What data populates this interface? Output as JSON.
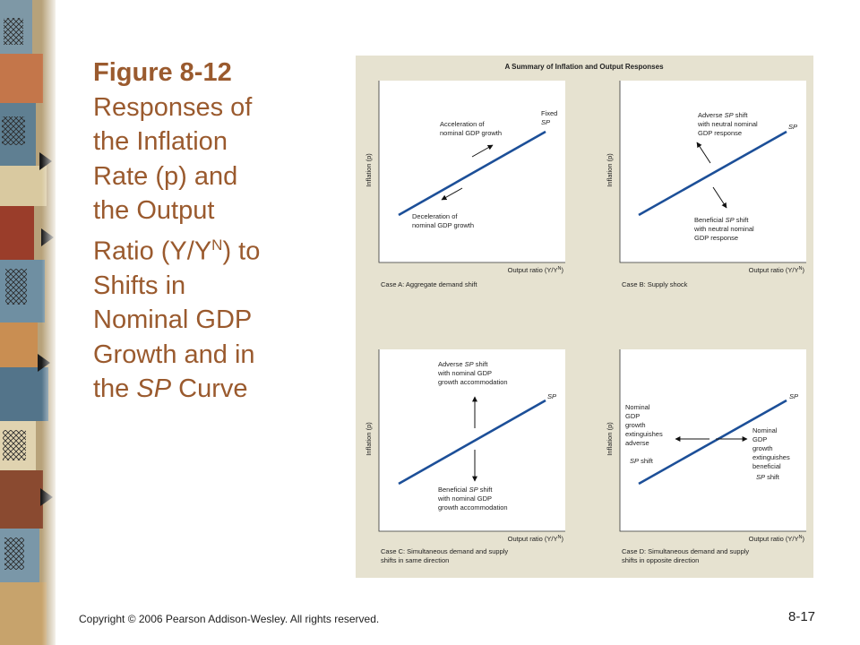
{
  "title": {
    "figure_label": "Figure 8-12",
    "lines": [
      "Responses of",
      "the Inflation",
      "Rate (p) and",
      "the Output",
      "Ratio (Y/Y",
      "Shifts in",
      "Nominal GDP",
      "Growth and in",
      "the "
    ],
    "ratio_sup": "N",
    "ratio_tail": ") to",
    "sp_italic": "SP",
    "curve_word": " Curve"
  },
  "footer": {
    "copyright": "Copyright © 2006 Pearson Addison-Wesley. All rights reserved.",
    "page_number": "8-17"
  },
  "figure": {
    "header": "A Summary of Inflation and Output Responses",
    "y_axis_label": "Inflation (p)",
    "x_axis_label": "Output ratio (Y/Y",
    "x_axis_sup": "N",
    "x_axis_close": ")",
    "sp_label": "SP",
    "colors": {
      "background": "#e6e2d0",
      "curve": "#1c4f98",
      "title_text": "#9a5a2e"
    },
    "panels": {
      "a": {
        "caption": "Case A: Aggregate demand shift",
        "fixed_label": "Fixed",
        "accel": [
          "Acceleration of",
          "nominal GDP growth"
        ],
        "decel": [
          "Deceleration of",
          "nominal GDP growth"
        ]
      },
      "b": {
        "caption": "Case B: Supply shock",
        "adverse": [
          "Adverse ",
          "SP",
          " shift",
          "with neutral nominal",
          "GDP response"
        ],
        "beneficial": [
          "Beneficial ",
          "SP",
          " shift",
          "with neutral nominal",
          "GDP response"
        ]
      },
      "c": {
        "caption": [
          "Case C: Simultaneous demand and supply",
          "shifts in same direction"
        ],
        "adverse": [
          "Adverse ",
          "SP",
          " shift",
          "with nominal GDP",
          "growth accommodation"
        ],
        "beneficial": [
          "Beneficial ",
          "SP",
          " shift",
          "with nominal GDP",
          "growth accommodation"
        ]
      },
      "d": {
        "caption": [
          "Case D: Simultaneous demand and supply",
          "shifts in opposite direction"
        ],
        "left": [
          "Nominal",
          "GDP",
          "growth",
          "extinguishes",
          "adverse",
          "SP",
          " shift"
        ],
        "right": [
          "Nominal",
          "GDP",
          "growth",
          "extinguishes",
          "beneficial",
          "SP",
          " shift"
        ]
      }
    }
  }
}
